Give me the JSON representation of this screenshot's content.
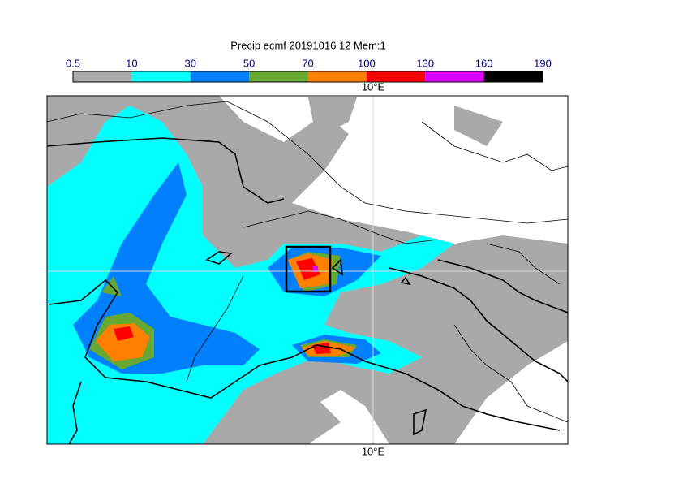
{
  "title": "Precip ecmf 20191016 12 Mem:1",
  "colorbar": {
    "levels": [
      "0.5",
      "10",
      "30",
      "50",
      "70",
      "100",
      "130",
      "160",
      "190"
    ],
    "colors": [
      "#a9a9a9",
      "#00ffff",
      "#0080ff",
      "#66a832",
      "#ff8000",
      "#ff0000",
      "#e000ff",
      "#000000"
    ]
  },
  "lon_label_top": "10°E",
  "lon_label_bottom": "10°E"
}
